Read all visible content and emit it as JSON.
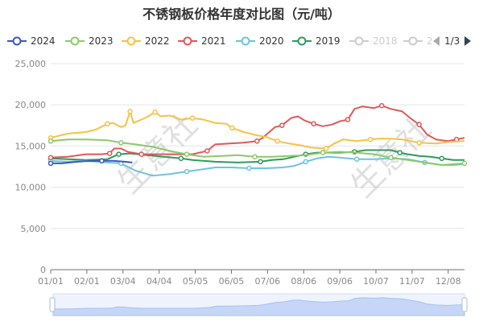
{
  "title": "不锈钢板价格年度对比图（元/吨）",
  "legend": {
    "items": [
      {
        "label": "2024",
        "color": "#3b59b8",
        "active": true
      },
      {
        "label": "2023",
        "color": "#8cc96a",
        "active": true
      },
      {
        "label": "2022",
        "color": "#f7c244",
        "active": true
      },
      {
        "label": "2021",
        "color": "#e0585a",
        "active": true
      },
      {
        "label": "2020",
        "color": "#6ec3df",
        "active": true
      },
      {
        "label": "2019",
        "color": "#2f9a5c",
        "active": true
      },
      {
        "label": "2018",
        "color": "#cccccc",
        "active": false
      },
      {
        "label": "2",
        "color": "#cccccc",
        "active": false
      }
    ],
    "pager": "1/3",
    "pager_prev_icon": "triangle-left-icon",
    "pager_next_icon": "triangle-right-icon"
  },
  "watermarks": [
    "生意社",
    "生意社"
  ],
  "chart_data": {
    "type": "line",
    "x_ticks": [
      "01/01",
      "02/01",
      "03/04",
      "04/04",
      "05/05",
      "06/05",
      "07/06",
      "08/06",
      "09/06",
      "10/07",
      "11/07",
      "12/08"
    ],
    "y_ticks": [
      "0",
      "5,000",
      "10,000",
      "15,000",
      "20,000",
      "25,000"
    ],
    "ylim": [
      0,
      25000
    ],
    "xlim": [
      0,
      365
    ],
    "grid": true,
    "legend_position": "top",
    "series": [
      {
        "name": "2024",
        "color": "#3b59b8",
        "points": [
          [
            0,
            12900
          ],
          [
            10,
            12900
          ],
          [
            20,
            13050
          ],
          [
            30,
            13150
          ],
          [
            45,
            13200
          ],
          [
            55,
            13200
          ],
          [
            65,
            13100
          ],
          [
            72,
            13000
          ]
        ]
      },
      {
        "name": "2023",
        "color": "#8cc96a",
        "points": [
          [
            0,
            15600
          ],
          [
            15,
            15800
          ],
          [
            31,
            15800
          ],
          [
            50,
            15700
          ],
          [
            62,
            15400
          ],
          [
            75,
            15200
          ],
          [
            90,
            14900
          ],
          [
            105,
            14400
          ],
          [
            120,
            14000
          ],
          [
            135,
            13700
          ],
          [
            150,
            13800
          ],
          [
            165,
            13900
          ],
          [
            180,
            13700
          ],
          [
            195,
            13700
          ],
          [
            210,
            13800
          ],
          [
            225,
            13900
          ],
          [
            240,
            14200
          ],
          [
            255,
            14300
          ],
          [
            270,
            14200
          ],
          [
            285,
            14000
          ],
          [
            300,
            13600
          ],
          [
            315,
            13300
          ],
          [
            330,
            13000
          ],
          [
            345,
            12700
          ],
          [
            365,
            12900
          ]
        ]
      },
      {
        "name": "2022",
        "color": "#f7c244",
        "points": [
          [
            0,
            16000
          ],
          [
            15,
            16500
          ],
          [
            31,
            16700
          ],
          [
            40,
            17000
          ],
          [
            50,
            17700
          ],
          [
            55,
            17800
          ],
          [
            62,
            17300
          ],
          [
            66,
            17500
          ],
          [
            70,
            19200
          ],
          [
            73,
            17800
          ],
          [
            80,
            18200
          ],
          [
            86,
            18600
          ],
          [
            92,
            19100
          ],
          [
            97,
            18600
          ],
          [
            105,
            18700
          ],
          [
            115,
            18200
          ],
          [
            125,
            18400
          ],
          [
            135,
            18200
          ],
          [
            145,
            17800
          ],
          [
            155,
            17700
          ],
          [
            160,
            17200
          ],
          [
            170,
            16700
          ],
          [
            182,
            16300
          ],
          [
            190,
            16100
          ],
          [
            200,
            15600
          ],
          [
            210,
            15300
          ],
          [
            220,
            15100
          ],
          [
            230,
            14800
          ],
          [
            243,
            14700
          ],
          [
            250,
            15300
          ],
          [
            258,
            15800
          ],
          [
            270,
            15600
          ],
          [
            282,
            15800
          ],
          [
            290,
            15900
          ],
          [
            300,
            15900
          ],
          [
            310,
            15800
          ],
          [
            325,
            15400
          ],
          [
            340,
            15300
          ],
          [
            352,
            15500
          ],
          [
            365,
            15600
          ]
        ]
      },
      {
        "name": "2021",
        "color": "#e0585a",
        "points": [
          [
            0,
            13600
          ],
          [
            15,
            13700
          ],
          [
            31,
            14000
          ],
          [
            45,
            14000
          ],
          [
            52,
            14100
          ],
          [
            56,
            14700
          ],
          [
            62,
            14700
          ],
          [
            68,
            14300
          ],
          [
            80,
            14000
          ],
          [
            95,
            14000
          ],
          [
            110,
            14000
          ],
          [
            125,
            14000
          ],
          [
            138,
            14400
          ],
          [
            145,
            15200
          ],
          [
            158,
            15300
          ],
          [
            170,
            15400
          ],
          [
            182,
            15600
          ],
          [
            187,
            16000
          ],
          [
            192,
            16600
          ],
          [
            198,
            17300
          ],
          [
            204,
            17500
          ],
          [
            212,
            18400
          ],
          [
            218,
            18600
          ],
          [
            224,
            18100
          ],
          [
            232,
            17700
          ],
          [
            240,
            17400
          ],
          [
            248,
            17600
          ],
          [
            255,
            18000
          ],
          [
            262,
            18200
          ],
          [
            268,
            19500
          ],
          [
            275,
            19800
          ],
          [
            285,
            19600
          ],
          [
            292,
            19900
          ],
          [
            300,
            19500
          ],
          [
            310,
            19200
          ],
          [
            318,
            18300
          ],
          [
            325,
            17600
          ],
          [
            332,
            16400
          ],
          [
            340,
            15800
          ],
          [
            350,
            15600
          ],
          [
            358,
            15800
          ],
          [
            365,
            16000
          ]
        ]
      },
      {
        "name": "2020",
        "color": "#6ec3df",
        "points": [
          [
            0,
            13200
          ],
          [
            15,
            13100
          ],
          [
            31,
            13200
          ],
          [
            50,
            13000
          ],
          [
            62,
            12900
          ],
          [
            75,
            12000
          ],
          [
            90,
            11400
          ],
          [
            105,
            11600
          ],
          [
            120,
            11900
          ],
          [
            135,
            12200
          ],
          [
            145,
            12400
          ],
          [
            160,
            12400
          ],
          [
            175,
            12300
          ],
          [
            190,
            12300
          ],
          [
            205,
            12400
          ],
          [
            215,
            12600
          ],
          [
            225,
            13100
          ],
          [
            235,
            13500
          ],
          [
            245,
            13700
          ],
          [
            255,
            13600
          ],
          [
            270,
            13400
          ],
          [
            285,
            13400
          ],
          [
            300,
            13500
          ],
          [
            315,
            13400
          ],
          [
            330,
            13000
          ],
          [
            345,
            12700
          ],
          [
            355,
            12700
          ],
          [
            365,
            12800
          ]
        ]
      },
      {
        "name": "2019",
        "color": "#2f9a5c",
        "points": [
          [
            0,
            13500
          ],
          [
            15,
            13400
          ],
          [
            31,
            13300
          ],
          [
            50,
            13400
          ],
          [
            60,
            14000
          ],
          [
            70,
            14100
          ],
          [
            85,
            13900
          ],
          [
            100,
            13700
          ],
          [
            115,
            13500
          ],
          [
            125,
            13300
          ],
          [
            145,
            13100
          ],
          [
            165,
            13000
          ],
          [
            185,
            13100
          ],
          [
            195,
            13300
          ],
          [
            205,
            13400
          ],
          [
            215,
            13700
          ],
          [
            225,
            14000
          ],
          [
            235,
            14200
          ],
          [
            245,
            14200
          ],
          [
            255,
            14200
          ],
          [
            268,
            14300
          ],
          [
            278,
            14500
          ],
          [
            290,
            14500
          ],
          [
            300,
            14500
          ],
          [
            308,
            14200
          ],
          [
            315,
            14000
          ],
          [
            325,
            13800
          ],
          [
            335,
            13700
          ],
          [
            345,
            13500
          ],
          [
            355,
            13300
          ],
          [
            365,
            13300
          ]
        ]
      }
    ]
  }
}
